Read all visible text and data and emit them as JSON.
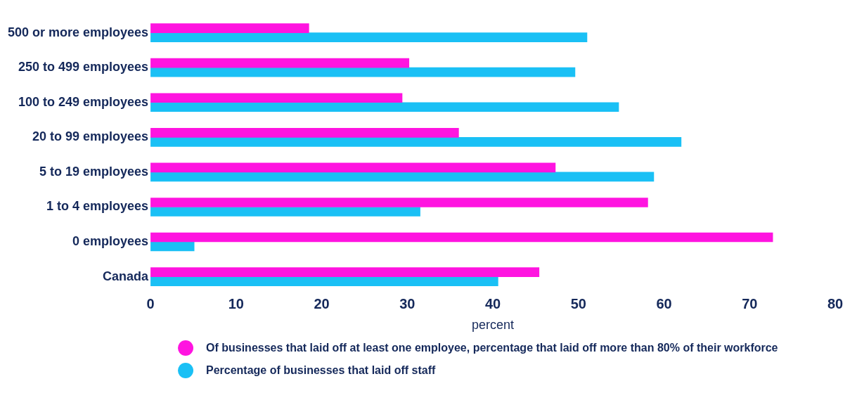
{
  "chart_data": {
    "type": "bar",
    "orientation": "horizontal",
    "xlabel": "percent",
    "categories": [
      "500 or more employees",
      "250 to 499 employees",
      "100 to 249 employees",
      "20 to 99 employees",
      "5 to 19 employees",
      "1 to 4 employees",
      "0 employees",
      "Canada"
    ],
    "series": [
      {
        "name": "Of businesses that laid off at least one employee, percentage that laid off more than 80% of their workforce",
        "color": "#ff14e0",
        "values": [
          18.5,
          30.2,
          29.4,
          36.0,
          47.3,
          58.1,
          72.7,
          45.4
        ]
      },
      {
        "name": "Percentage of businesses that laid off staff",
        "color": "#1ac0f5",
        "values": [
          51.0,
          49.6,
          54.7,
          62.0,
          58.8,
          31.5,
          5.1,
          40.6
        ]
      }
    ],
    "xlim": [
      0,
      80
    ],
    "xticks": [
      0,
      10,
      20,
      30,
      40,
      50,
      60,
      70,
      80
    ],
    "grid": false,
    "legend": "bottom"
  }
}
